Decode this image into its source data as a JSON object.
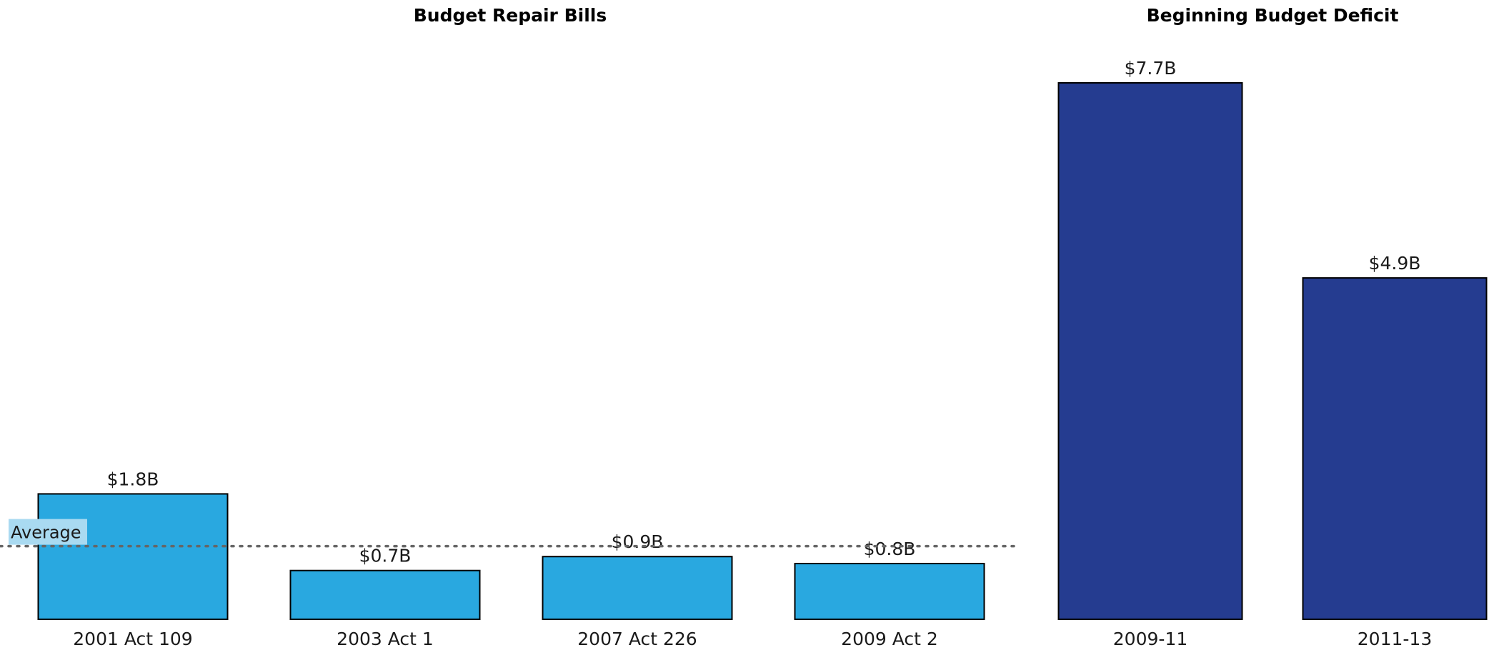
{
  "chart_data": [
    {
      "type": "bar",
      "title": "Budget Repair Bills",
      "categories": [
        "2001 Act 109",
        "2003 Act 1",
        "2007 Act 226",
        "2009 Act 2"
      ],
      "values": [
        1.8,
        0.7,
        0.9,
        0.8
      ],
      "value_labels": [
        "$1.8B",
        "$0.7B",
        "$0.9B",
        "$0.8B"
      ],
      "unit": "$B",
      "ylim": [
        0,
        7.5
      ],
      "grid": false,
      "bar_color": "#29a8e0",
      "reference_line": {
        "label": "Average",
        "value": 1.05,
        "style": "dotted"
      }
    },
    {
      "type": "bar",
      "title": "Beginning Budget Deficit",
      "categories": [
        "2009-11",
        "2011-13"
      ],
      "values": [
        7.7,
        4.9
      ],
      "value_labels": [
        "$7.7B",
        "$4.9B"
      ],
      "unit": "$B",
      "ylim": [
        0,
        7.5
      ],
      "grid": false,
      "bar_color": "#253c90"
    }
  ],
  "colors": {
    "text": "#1a1a1a",
    "bar_stroke": "#000000",
    "reference_line": "#666666",
    "average_label_bg": "#a9daf1"
  }
}
